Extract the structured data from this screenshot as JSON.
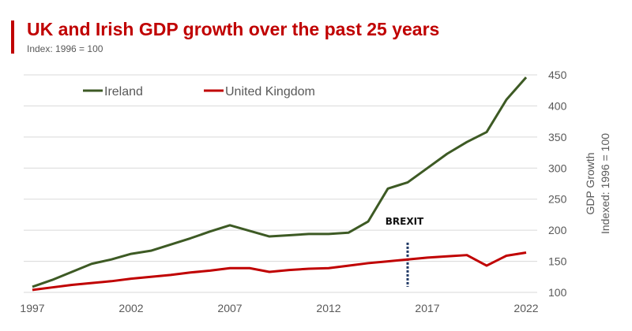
{
  "chart_data": {
    "type": "line",
    "title": "UK and Irish GDP growth over the past 25 years",
    "subtitle": "Index: 1996 = 100",
    "ylabel": [
      "GDP Growth",
      "Indexed: 1996 = 100"
    ],
    "xlabel": "",
    "x": [
      1997,
      1998,
      1999,
      2000,
      2001,
      2002,
      2003,
      2004,
      2005,
      2006,
      2007,
      2008,
      2009,
      2010,
      2011,
      2012,
      2013,
      2014,
      2015,
      2016,
      2017,
      2018,
      2019,
      2020,
      2021,
      2022
    ],
    "xticks": [
      "1997",
      "2002",
      "2007",
      "2012",
      "2017",
      "2022"
    ],
    "yticks": [
      "100",
      "150",
      "200",
      "250",
      "300",
      "350",
      "400",
      "450"
    ],
    "ylim": [
      100,
      450
    ],
    "y_axis_side": "right",
    "grid": true,
    "legend_position": "top-left",
    "series": [
      {
        "name": "Ireland",
        "color": "#3d5a24",
        "values": [
          109,
          120,
          133,
          146,
          153,
          162,
          167,
          177,
          187,
          198,
          208,
          199,
          190,
          192,
          194,
          194,
          196,
          214,
          267,
          277,
          300,
          323,
          342,
          358,
          410,
          446
        ]
      },
      {
        "name": "United Kingdom",
        "color": "#c00000",
        "values": [
          104,
          108,
          112,
          115,
          118,
          122,
          125,
          128,
          132,
          135,
          139,
          139,
          133,
          136,
          138,
          139,
          143,
          147,
          150,
          153,
          156,
          158,
          160,
          143,
          159,
          164
        ]
      }
    ],
    "annotations": [
      {
        "text": "BREXIT",
        "x": 2016,
        "line_from": 109,
        "line_to": 180,
        "color": "#1f3864"
      }
    ]
  }
}
